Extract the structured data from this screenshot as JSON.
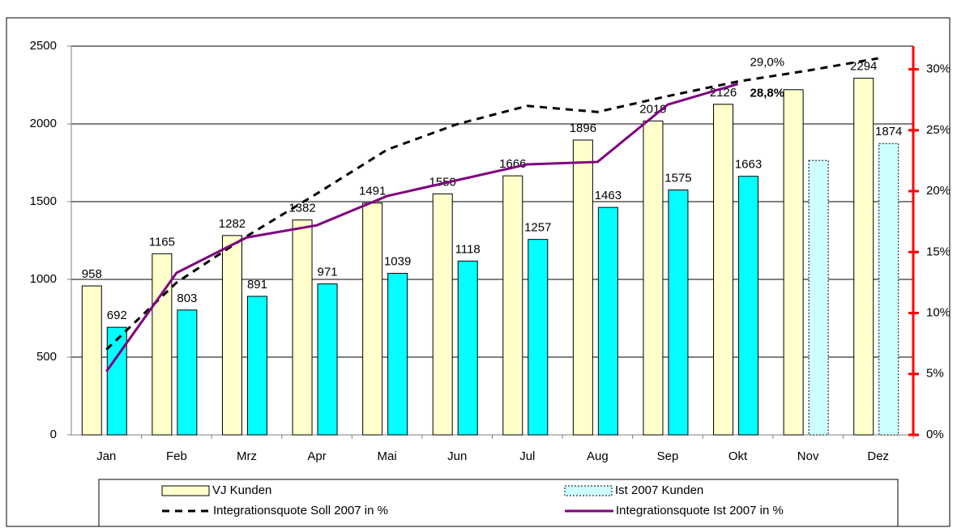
{
  "chart_data": {
    "type": "bar",
    "categories": [
      "Jan",
      "Feb",
      "Mrz",
      "Apr",
      "Mai",
      "Jun",
      "Jul",
      "Aug",
      "Sep",
      "Okt",
      "Nov",
      "Dez"
    ],
    "series": [
      {
        "name": "VJ Kunden",
        "type": "bar",
        "color": "#ffffcc",
        "values": [
          958,
          1165,
          1282,
          1382,
          1491,
          1550,
          1666,
          1896,
          2019,
          2126,
          2220,
          2294
        ],
        "labeled": [
          true,
          true,
          true,
          true,
          true,
          true,
          true,
          true,
          true,
          true,
          false,
          true
        ]
      },
      {
        "name": "Ist 2007 Kunden",
        "type": "bar",
        "color": "#00ffff",
        "dotted_color": "#ccffff",
        "values": [
          692,
          803,
          891,
          971,
          1039,
          1118,
          1257,
          1463,
          1575,
          1663,
          1765,
          1874
        ],
        "labeled": [
          true,
          true,
          true,
          true,
          true,
          true,
          true,
          true,
          true,
          true,
          false,
          true
        ],
        "border_style": [
          "solid",
          "solid",
          "solid",
          "solid",
          "solid",
          "solid",
          "solid",
          "solid",
          "solid",
          "solid",
          "dotted",
          "dotted"
        ]
      },
      {
        "name": "Integrationsquote Soll 2007 in %",
        "type": "line",
        "axis": "y2",
        "color": "#000000",
        "dashed": true,
        "values": [
          7.0,
          12.5,
          16.3,
          19.8,
          23.4,
          25.5,
          27.0,
          26.5,
          27.8,
          29.0,
          29.9,
          30.9
        ],
        "value_labels": [
          null,
          null,
          null,
          null,
          null,
          null,
          null,
          null,
          null,
          "29,0%",
          null,
          null
        ]
      },
      {
        "name": "Integrationsquote Ist 2007 in %",
        "type": "line",
        "axis": "y2",
        "color": "#800080",
        "dashed": false,
        "bold_labels": true,
        "values": [
          5.2,
          13.3,
          16.2,
          17.2,
          19.6,
          20.9,
          22.2,
          22.4,
          27.1,
          28.8,
          null,
          null
        ],
        "value_labels": [
          null,
          null,
          null,
          null,
          null,
          null,
          null,
          null,
          null,
          "28,8%",
          null,
          null
        ]
      }
    ],
    "ylim": [
      0,
      2500
    ],
    "yticks": [
      0,
      500,
      1000,
      1500,
      2000,
      2500
    ],
    "y2lim": [
      0,
      31.9
    ],
    "y2ticks": [
      {
        "value": 0,
        "label": "0%"
      },
      {
        "value": 5,
        "label": "5%"
      },
      {
        "value": 10,
        "label": "10%"
      },
      {
        "value": 15,
        "label": "15%"
      },
      {
        "value": 20,
        "label": "20%"
      },
      {
        "value": 25,
        "label": "25%"
      },
      {
        "value": 30,
        "label": "30%"
      }
    ],
    "y2_color": "#ff0000",
    "grid": true
  }
}
